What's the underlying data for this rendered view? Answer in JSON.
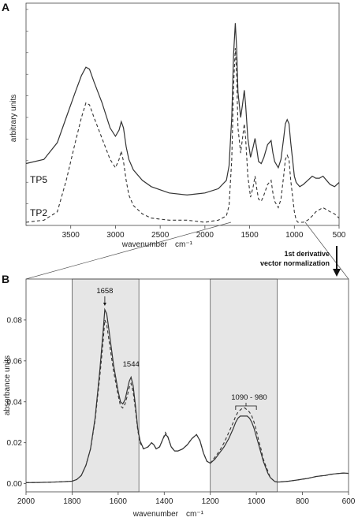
{
  "chart_data": [
    {
      "panel": "A",
      "type": "line",
      "xlabel": "wavenumber",
      "xunit": "cm⁻¹",
      "ylabel": "arbitrary units",
      "xlim": [
        4000,
        500
      ],
      "ylim": [
        0,
        1
      ],
      "x_ticks": [
        3500,
        3000,
        2500,
        2000,
        1500,
        1000,
        500
      ],
      "grid": false,
      "series": [
        {
          "name": "TP5",
          "style": "solid",
          "x": [
            4000,
            3800,
            3650,
            3550,
            3450,
            3380,
            3330,
            3290,
            3240,
            3150,
            3060,
            3000,
            2960,
            2935,
            2910,
            2880,
            2850,
            2800,
            2700,
            2600,
            2400,
            2200,
            2000,
            1850,
            1760,
            1730,
            1700,
            1680,
            1660,
            1645,
            1630,
            1600,
            1580,
            1560,
            1545,
            1520,
            1490,
            1460,
            1440,
            1420,
            1400,
            1370,
            1340,
            1300,
            1260,
            1240,
            1220,
            1180,
            1150,
            1120,
            1100,
            1080,
            1060,
            1040,
            1000,
            980,
            960,
            940,
            900,
            850,
            800,
            760,
            720,
            680,
            640,
            600,
            550,
            500
          ],
          "y": [
            0.28,
            0.3,
            0.38,
            0.5,
            0.62,
            0.7,
            0.74,
            0.73,
            0.67,
            0.57,
            0.45,
            0.41,
            0.44,
            0.48,
            0.45,
            0.36,
            0.3,
            0.25,
            0.2,
            0.17,
            0.14,
            0.13,
            0.14,
            0.16,
            0.2,
            0.27,
            0.5,
            0.8,
            0.95,
            0.83,
            0.62,
            0.5,
            0.56,
            0.63,
            0.56,
            0.4,
            0.31,
            0.36,
            0.4,
            0.35,
            0.29,
            0.28,
            0.31,
            0.37,
            0.39,
            0.33,
            0.29,
            0.26,
            0.3,
            0.4,
            0.47,
            0.49,
            0.47,
            0.38,
            0.22,
            0.19,
            0.18,
            0.17,
            0.18,
            0.2,
            0.22,
            0.21,
            0.21,
            0.22,
            0.2,
            0.18,
            0.17,
            0.19
          ]
        },
        {
          "name": "TP2",
          "style": "dashed",
          "x": [
            4000,
            3800,
            3650,
            3550,
            3450,
            3380,
            3330,
            3290,
            3240,
            3150,
            3060,
            3000,
            2960,
            2935,
            2910,
            2880,
            2850,
            2800,
            2700,
            2600,
            2400,
            2200,
            2000,
            1850,
            1760,
            1730,
            1700,
            1680,
            1660,
            1645,
            1630,
            1600,
            1580,
            1560,
            1545,
            1520,
            1490,
            1460,
            1440,
            1420,
            1400,
            1370,
            1340,
            1300,
            1260,
            1240,
            1220,
            1180,
            1150,
            1120,
            1100,
            1080,
            1060,
            1040,
            1000,
            980,
            960,
            940,
            900,
            850,
            800,
            760,
            720,
            680,
            640,
            600,
            550,
            500
          ],
          "y": [
            0.0,
            0.01,
            0.05,
            0.2,
            0.38,
            0.5,
            0.57,
            0.56,
            0.5,
            0.4,
            0.3,
            0.26,
            0.3,
            0.34,
            0.29,
            0.2,
            0.13,
            0.08,
            0.04,
            0.02,
            0.01,
            0.01,
            0.0,
            0.01,
            0.03,
            0.08,
            0.3,
            0.65,
            0.83,
            0.7,
            0.45,
            0.33,
            0.4,
            0.47,
            0.4,
            0.22,
            0.12,
            0.17,
            0.22,
            0.16,
            0.11,
            0.1,
            0.13,
            0.18,
            0.2,
            0.14,
            0.1,
            0.07,
            0.11,
            0.22,
            0.3,
            0.32,
            0.3,
            0.2,
            0.05,
            0.01,
            0.0,
            0.0,
            0.0,
            0.01,
            0.03,
            0.05,
            0.06,
            0.07,
            0.06,
            0.05,
            0.04,
            0.02
          ]
        }
      ]
    },
    {
      "panel": "B",
      "type": "line",
      "xlabel": "wavenumber",
      "xunit": "cm⁻¹",
      "ylabel": "absorbance  units",
      "xlim": [
        2000,
        600
      ],
      "ylim": [
        -0.004,
        0.1
      ],
      "x_ticks": [
        2000,
        1800,
        1600,
        1400,
        1200,
        1000,
        800,
        600
      ],
      "y_ticks": [
        0.0,
        0.02,
        0.04,
        0.06,
        0.08
      ],
      "y_tick_labels": [
        "0.00",
        "0.02",
        "0.04",
        "0.06",
        "0.08"
      ],
      "grid": false,
      "shaded_regions": [
        [
          1800,
          1510
        ],
        [
          1200,
          910
        ]
      ],
      "annotations": [
        {
          "text": "1658",
          "x": 1658
        },
        {
          "text": "1544",
          "x": 1544
        },
        {
          "text": "1090 - 980",
          "x": 1045
        }
      ],
      "series": [
        {
          "style": "solid",
          "x": [
            2000,
            1950,
            1900,
            1850,
            1800,
            1780,
            1760,
            1740,
            1720,
            1700,
            1680,
            1665,
            1658,
            1650,
            1640,
            1620,
            1600,
            1590,
            1580,
            1570,
            1560,
            1552,
            1544,
            1535,
            1525,
            1515,
            1505,
            1490,
            1470,
            1455,
            1445,
            1435,
            1420,
            1405,
            1395,
            1385,
            1370,
            1355,
            1340,
            1320,
            1300,
            1280,
            1260,
            1245,
            1230,
            1215,
            1200,
            1180,
            1160,
            1140,
            1120,
            1100,
            1090,
            1080,
            1070,
            1060,
            1050,
            1040,
            1030,
            1020,
            1010,
            1000,
            990,
            980,
            970,
            960,
            950,
            940,
            930,
            920,
            910,
            900,
            880,
            860,
            840,
            820,
            800,
            780,
            760,
            740,
            720,
            700,
            680,
            660,
            640,
            620,
            600
          ],
          "y": [
            0.0005,
            0.0006,
            0.0007,
            0.0009,
            0.0012,
            0.002,
            0.004,
            0.009,
            0.017,
            0.032,
            0.055,
            0.075,
            0.085,
            0.083,
            0.075,
            0.058,
            0.045,
            0.04,
            0.039,
            0.041,
            0.046,
            0.05,
            0.052,
            0.048,
            0.038,
            0.027,
            0.021,
            0.017,
            0.018,
            0.02,
            0.019,
            0.017,
            0.018,
            0.022,
            0.024,
            0.023,
            0.018,
            0.016,
            0.016,
            0.017,
            0.019,
            0.022,
            0.024,
            0.021,
            0.015,
            0.011,
            0.01,
            0.012,
            0.015,
            0.018,
            0.022,
            0.027,
            0.03,
            0.032,
            0.033,
            0.033,
            0.033,
            0.033,
            0.032,
            0.03,
            0.027,
            0.023,
            0.019,
            0.015,
            0.011,
            0.008,
            0.005,
            0.003,
            0.002,
            0.001,
            0.0008,
            0.0008,
            0.001,
            0.0012,
            0.0015,
            0.0018,
            0.0022,
            0.0025,
            0.003,
            0.0035,
            0.0038,
            0.004,
            0.0045,
            0.0048,
            0.005,
            0.0052,
            0.005
          ]
        },
        {
          "style": "dashed",
          "x": [
            2000,
            1950,
            1900,
            1850,
            1800,
            1780,
            1760,
            1740,
            1720,
            1700,
            1680,
            1665,
            1658,
            1650,
            1640,
            1620,
            1600,
            1590,
            1580,
            1570,
            1560,
            1552,
            1544,
            1535,
            1525,
            1515,
            1505,
            1490,
            1470,
            1455,
            1445,
            1435,
            1420,
            1405,
            1395,
            1385,
            1370,
            1355,
            1340,
            1320,
            1300,
            1280,
            1260,
            1245,
            1230,
            1215,
            1200,
            1180,
            1160,
            1140,
            1120,
            1100,
            1090,
            1080,
            1070,
            1060,
            1050,
            1040,
            1030,
            1020,
            1010,
            1000,
            990,
            980,
            970,
            960,
            950,
            940,
            930,
            920,
            910,
            900,
            880,
            860,
            840,
            820,
            800,
            780,
            760,
            740,
            720,
            700,
            680,
            660,
            640,
            620,
            600
          ],
          "y": [
            0.0005,
            0.0006,
            0.0007,
            0.0009,
            0.0012,
            0.002,
            0.004,
            0.009,
            0.017,
            0.031,
            0.052,
            0.07,
            0.08,
            0.078,
            0.07,
            0.055,
            0.043,
            0.038,
            0.037,
            0.039,
            0.043,
            0.047,
            0.049,
            0.045,
            0.036,
            0.026,
            0.02,
            0.017,
            0.018,
            0.02,
            0.019,
            0.017,
            0.018,
            0.022,
            0.025,
            0.023,
            0.018,
            0.016,
            0.016,
            0.017,
            0.019,
            0.022,
            0.024,
            0.021,
            0.015,
            0.011,
            0.01,
            0.013,
            0.016,
            0.02,
            0.025,
            0.03,
            0.033,
            0.035,
            0.036,
            0.037,
            0.037,
            0.036,
            0.035,
            0.033,
            0.03,
            0.026,
            0.021,
            0.017,
            0.012,
            0.009,
            0.006,
            0.003,
            0.002,
            0.001,
            0.0008,
            0.0008,
            0.001,
            0.0012,
            0.0015,
            0.0018,
            0.0022,
            0.0025,
            0.003,
            0.0035,
            0.0038,
            0.004,
            0.0045,
            0.0048,
            0.005,
            0.0052,
            0.005
          ]
        }
      ]
    }
  ],
  "panel_labels": [
    "A",
    "B"
  ],
  "series_labels": [
    "TP5",
    "TP2"
  ],
  "transform_arrow": {
    "line1": "1st derivative",
    "line2": "vector normalization"
  },
  "colors": {
    "line": "#333333",
    "shade": "#e6e6e6",
    "axis": "#444444"
  }
}
